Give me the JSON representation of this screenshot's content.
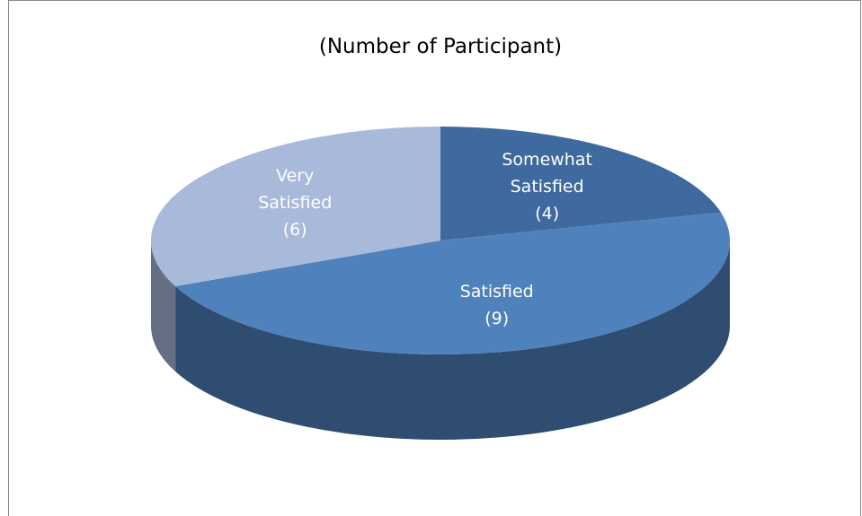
{
  "chart_data": {
    "type": "pie",
    "title": "(Number of Participant)",
    "categories": [
      "Somewhat Satisfied",
      "Satisfied",
      "Very Satisfied"
    ],
    "values": [
      4,
      9,
      6
    ],
    "value_labels": [
      "(4)",
      "(9)",
      "(6)"
    ],
    "colors": [
      "#3e6a9f",
      "#4f81bd",
      "#a8b9da"
    ]
  }
}
